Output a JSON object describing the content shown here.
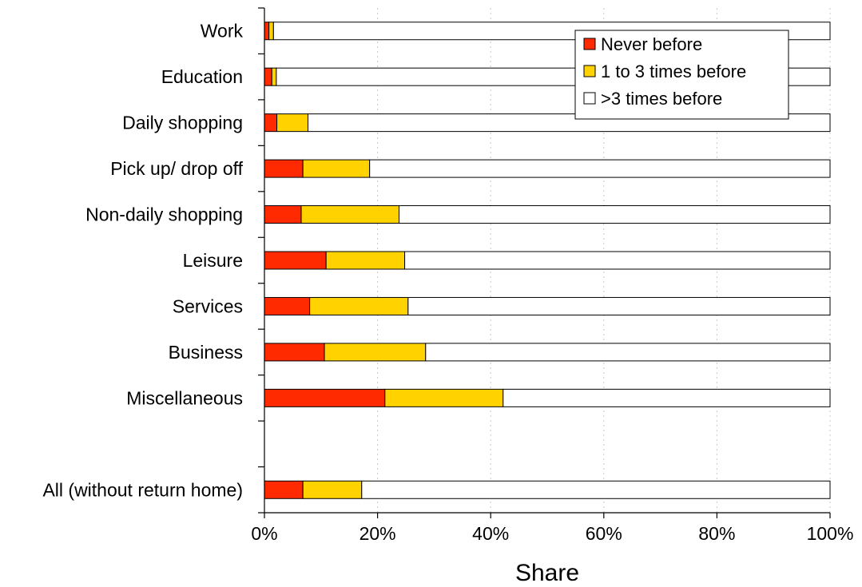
{
  "chart_data": {
    "type": "bar",
    "orientation": "horizontal",
    "stacked": true,
    "categories": [
      "Work",
      "Education",
      "Daily shopping",
      "Pick up/ drop off",
      "Non-daily shopping",
      "Leisure",
      "Services",
      "Business",
      "Miscellaneous",
      "",
      "All (without return home)"
    ],
    "series": [
      {
        "name": "Never before",
        "color": "#ff2a00",
        "values": [
          0.8,
          1.3,
          2.2,
          6.8,
          6.5,
          10.9,
          8.0,
          10.6,
          21.3,
          null,
          6.8
        ]
      },
      {
        "name": "1 to 3 times before",
        "color": "#ffd200",
        "values": [
          0.8,
          0.8,
          5.5,
          11.8,
          17.3,
          13.9,
          17.4,
          17.9,
          20.9,
          null,
          10.4
        ]
      },
      {
        "name": ">3 times before",
        "color": "#ffffff",
        "values": [
          98.4,
          97.9,
          92.3,
          81.4,
          76.2,
          75.2,
          74.6,
          71.5,
          57.8,
          null,
          82.8
        ]
      }
    ],
    "xlabel": "Share",
    "ylabel": "",
    "xlim": [
      0,
      100
    ],
    "xticks": [
      "0%",
      "20%",
      "40%",
      "60%",
      "80%",
      "100%"
    ],
    "grid": "vertical dotted",
    "legend_position": "top-right"
  }
}
